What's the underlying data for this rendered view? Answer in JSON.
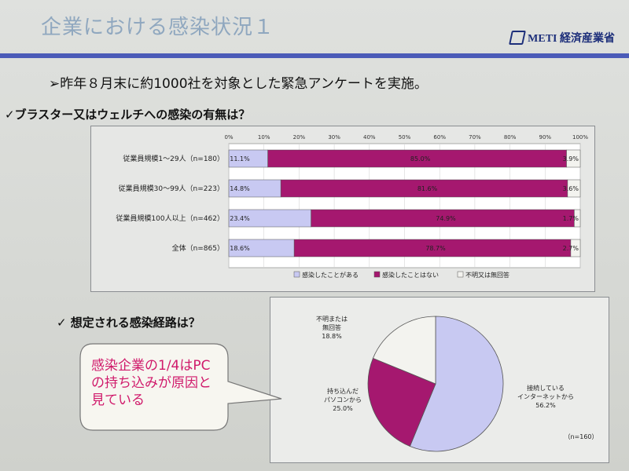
{
  "slide": {
    "title": "企業における感染状況１",
    "logo_text": "METI 経済産業省",
    "lead": "➢昨年８月末に約1000社を対象とした緊急アンケートを実施。"
  },
  "bar_section": {
    "question": "✓ブラスター又はウェルチへの感染の有無は？"
  },
  "pie_section": {
    "question": "✓ 想定される感染経路は？"
  },
  "callout": {
    "lines": [
      "感染企業の1/4はPC",
      "の持ち込みが原因と",
      "見ている"
    ]
  },
  "colors": {
    "infected": "#c8c9f2",
    "not_infected": "#a5186f",
    "unknown": "#f3f3ef",
    "rule": "#4b5bb8"
  },
  "chart_data": [
    {
      "type": "bar",
      "stacked": true,
      "orientation": "horizontal",
      "categories": [
        "従業員規模1～29人（n=180）",
        "従業員規模30～99人（n=223）",
        "従業員規模100人以上（n=462）",
        "全体（n=865）"
      ],
      "series": [
        {
          "name": "感染したことがある",
          "values": [
            11.1,
            14.8,
            23.4,
            18.6
          ],
          "labels": [
            "11.1%",
            "14.8%",
            "23.4%",
            "18.6%"
          ]
        },
        {
          "name": "感染したことはない",
          "values": [
            85.0,
            81.6,
            74.9,
            78.7
          ],
          "labels": [
            "85.0%",
            "81.6%",
            "74.9%",
            "78.7%"
          ]
        },
        {
          "name": "不明又は無回答",
          "values": [
            3.9,
            3.6,
            1.7,
            2.7
          ],
          "labels": [
            "3.9%",
            "3.6%",
            "1.7%",
            "2.7%"
          ]
        }
      ],
      "xlim": [
        0,
        100
      ],
      "ticks": [
        "0%",
        "10%",
        "20%",
        "30%",
        "40%",
        "50%",
        "60%",
        "70%",
        "80%",
        "90%",
        "100%"
      ],
      "legend": "bottom"
    },
    {
      "type": "pie",
      "slices": [
        {
          "label": "接続している インターネットから",
          "value": 56.2,
          "value_label": "56.2%"
        },
        {
          "label": "持ち込んだ パソコンから",
          "value": 25.0,
          "value_label": "25.0%"
        },
        {
          "label": "不明または 無回答",
          "value": 18.8,
          "value_label": "18.8%"
        }
      ],
      "note": "（n=160）"
    }
  ]
}
